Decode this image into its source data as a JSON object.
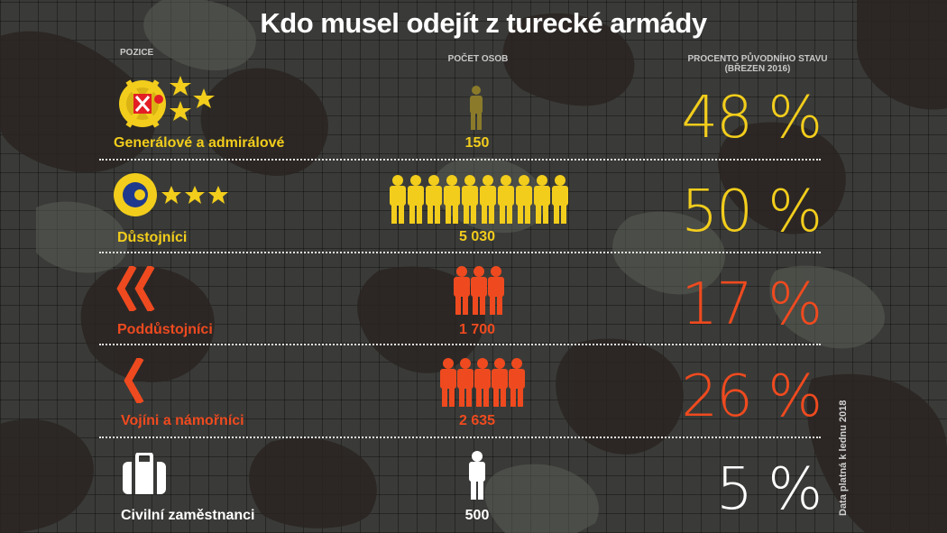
{
  "title": "Kdo musel odejít z turecké armády",
  "headers": {
    "position": "POZICE",
    "count": "POČET OSOB",
    "percent_line1": "PROCENTO PŮVODNÍHO STAVU",
    "percent_line2": "(BŘEZEN 2016)"
  },
  "colors": {
    "gold": "#f2cd1c",
    "orange": "#ef4a1f",
    "white": "#ffffff"
  },
  "rows": [
    {
      "label": "Generálové a admirálové",
      "count": "150",
      "percent": "48 %",
      "color": "#f2cd1c",
      "icon": "general-insignia-icon",
      "soldier_icons": 1
    },
    {
      "label": "Důstojníci",
      "count": "5 030",
      "percent": "50 %",
      "color": "#f2cd1c",
      "icon": "officer-insignia-icon",
      "soldier_icons": 10
    },
    {
      "label": "Poddůstojníci",
      "count": "1 700",
      "percent": "17 %",
      "color": "#ef4a1f",
      "icon": "double-chevron-icon",
      "soldier_icons": 3
    },
    {
      "label": "Vojíni a  námořníci",
      "count": "2 635",
      "percent": "26 %",
      "color": "#ef4a1f",
      "icon": "single-chevron-icon",
      "soldier_icons": 5
    },
    {
      "label": "Civilní zaměstnanci",
      "count": "500",
      "percent": "5 %",
      "color": "#ffffff",
      "icon": "briefcase-icon",
      "soldier_icons": 1
    }
  ],
  "footnote": "Data platná k lednu 2018"
}
